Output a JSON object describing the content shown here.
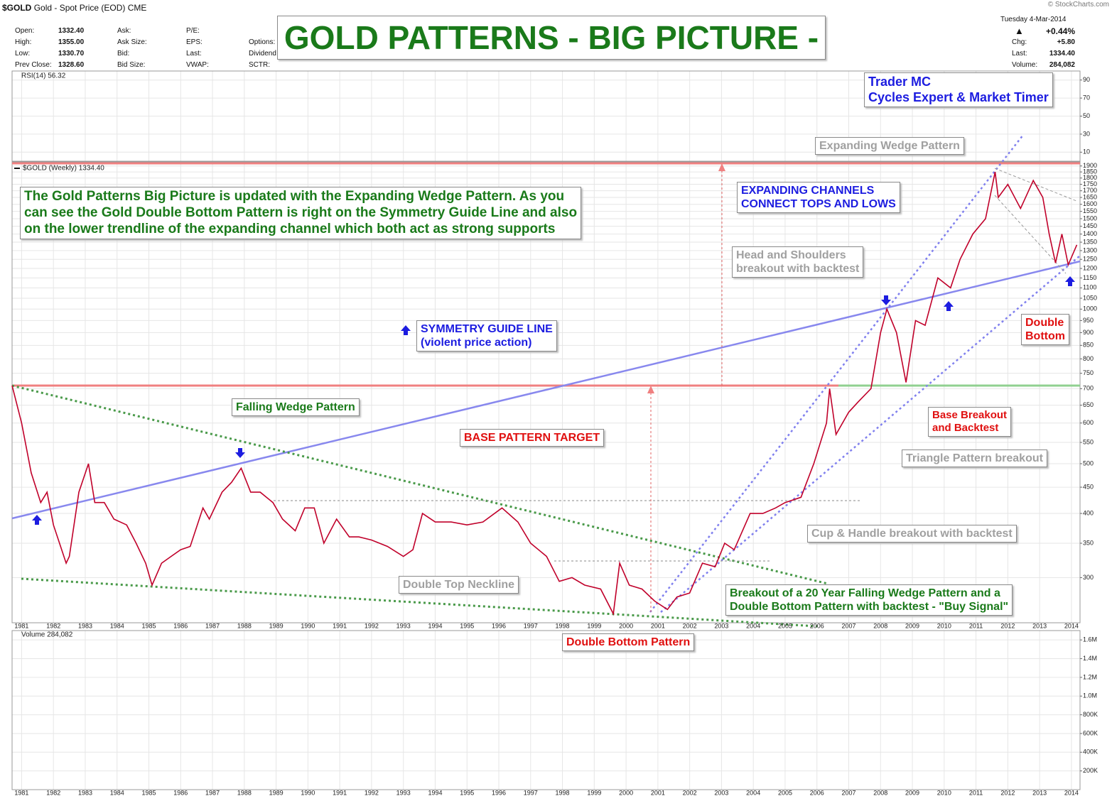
{
  "header": {
    "symbol": "$GOLD",
    "name": "Gold - Spot Price (EOD)",
    "exchange": "CME",
    "date": "Tuesday  4-Mar-2014",
    "change_pct": "+0.44%",
    "chg_label": "Chg:",
    "chg": "+5.80",
    "last_label": "Last:",
    "last": "1334.40",
    "volume_label": "Volume:",
    "volume": "284,082",
    "copyright": "© StockCharts.com",
    "title": "GOLD PATTERNS - BIG PICTURE -",
    "author": [
      "Trader MC",
      "Cycles Expert & Market Timer"
    ]
  },
  "quote": {
    "labels1": [
      "Open:",
      "High:",
      "Low:",
      "Prev Close:"
    ],
    "values1": [
      "1332.40",
      "1355.00",
      "1330.70",
      "1328.60"
    ],
    "labels2": [
      "Ask:",
      "Ask Size:",
      "Bid:",
      "Bid Size:"
    ],
    "labels3": [
      "P/E:",
      "EPS:",
      "Last:",
      "VWAP:"
    ],
    "labels4": [
      "Options:",
      "Dividend",
      "SCTR:"
    ]
  },
  "chart_data": [
    {
      "type": "line",
      "log_scale": true,
      "grid": true,
      "xlim": [
        1980.7,
        2014.27
      ],
      "ylim": [
        245,
        1935
      ],
      "xticks": [
        1981,
        1982,
        1983,
        1984,
        1985,
        1986,
        1987,
        1988,
        1989,
        1990,
        1991,
        1992,
        1993,
        1994,
        1995,
        1996,
        1997,
        1998,
        1999,
        2000,
        2001,
        2002,
        2003,
        2004,
        2005,
        2006,
        2007,
        2008,
        2009,
        2010,
        2011,
        2012,
        2013,
        2014
      ],
      "yticks": [
        300,
        350,
        400,
        450,
        500,
        550,
        600,
        650,
        700,
        750,
        800,
        850,
        900,
        950,
        1000,
        1050,
        1100,
        1150,
        1200,
        1250,
        1300,
        1350,
        1400,
        1450,
        1500,
        1550,
        1600,
        1650,
        1700,
        1750,
        1800,
        1850,
        1900
      ],
      "x": [
        1980.7,
        1981.0,
        1981.3,
        1981.6,
        1981.8,
        1982.0,
        1982.4,
        1982.5,
        1982.8,
        1983.1,
        1983.3,
        1983.6,
        1983.9,
        1984.3,
        1984.6,
        1984.9,
        1985.1,
        1985.4,
        1985.7,
        1986.0,
        1986.3,
        1986.7,
        1986.9,
        1987.3,
        1987.6,
        1987.9,
        1988.2,
        1988.5,
        1988.9,
        1989.2,
        1989.6,
        1989.9,
        1990.2,
        1990.5,
        1990.9,
        1991.3,
        1991.6,
        1992.0,
        1992.5,
        1993.0,
        1993.3,
        1993.6,
        1994.0,
        1994.5,
        1995.0,
        1995.5,
        1996.1,
        1996.6,
        1997.0,
        1997.5,
        1997.9,
        1998.3,
        1998.7,
        1999.2,
        1999.6,
        1999.8,
        2000.1,
        2000.5,
        2000.9,
        2001.3,
        2001.6,
        2002.0,
        2002.4,
        2002.8,
        2003.1,
        2003.4,
        2003.9,
        2004.3,
        2004.7,
        2005.0,
        2005.5,
        2005.9,
        2006.3,
        2006.4,
        2006.6,
        2007.0,
        2007.3,
        2007.7,
        2008.0,
        2008.2,
        2008.5,
        2008.8,
        2009.1,
        2009.4,
        2009.8,
        2010.2,
        2010.5,
        2010.9,
        2011.3,
        2011.6,
        2011.7,
        2012.0,
        2012.4,
        2012.8,
        2013.1,
        2013.3,
        2013.5,
        2013.7,
        2013.9,
        2014.17
      ],
      "series": [
        {
          "name": "$GOLD (Weekly) 1334.40",
          "color": "#c0002a",
          "values": [
            710,
            600,
            480,
            420,
            440,
            380,
            320,
            330,
            440,
            500,
            420,
            420,
            390,
            380,
            350,
            320,
            290,
            320,
            330,
            340,
            345,
            410,
            390,
            440,
            460,
            490,
            440,
            440,
            420,
            390,
            370,
            410,
            410,
            350,
            390,
            360,
            360,
            355,
            345,
            330,
            340,
            400,
            385,
            385,
            380,
            385,
            410,
            385,
            350,
            330,
            295,
            300,
            290,
            285,
            255,
            320,
            290,
            285,
            270,
            260,
            275,
            280,
            320,
            315,
            350,
            340,
            400,
            400,
            410,
            420,
            430,
            500,
            600,
            700,
            570,
            630,
            660,
            700,
            900,
            1000,
            900,
            720,
            950,
            930,
            1150,
            1100,
            1250,
            1400,
            1500,
            1850,
            1650,
            1750,
            1570,
            1780,
            1650,
            1400,
            1230,
            1400,
            1220,
            1334
          ]
        }
      ],
      "annotations": [
        [
          "Expanding Wedge Pattern"
        ],
        [
          "EXPANDING CHANNELS",
          "CONNECT TOPS AND LOWS"
        ],
        [
          "Head and Shoulders",
          "breakout with backtest"
        ],
        [
          "Double",
          "Bottom"
        ],
        [
          "SYMMETRY GUIDE LINE",
          "(violent price action)"
        ],
        [
          "Falling Wedge Pattern"
        ],
        [
          "BASE PATTERN TARGET"
        ],
        [
          "Base Breakout",
          "and Backtest"
        ],
        [
          "Triangle Pattern breakout"
        ],
        [
          "Cup & Handle breakout with backtest"
        ],
        [
          "Double Top Neckline"
        ],
        [
          "Breakout of a 20 Year Falling Wedge Pattern and a",
          "Double Bottom Pattern with backtest - \"Buy Signal\""
        ],
        [
          "Double Bottom Pattern"
        ],
        [
          "The Gold Patterns Big Picture is updated with the Expanding Wedge Pattern. As you",
          "can see the Gold Double Bottom Pattern is right on the Symmetry Guide Line and also",
          "on the lower trendline of the expanding channel which both act as strong supports"
        ]
      ]
    },
    {
      "type": "line",
      "title": "RSI(14) 56.32",
      "ylim": [
        0,
        100
      ],
      "yticks": [
        10,
        30,
        50,
        70,
        90
      ],
      "grid": true
    },
    {
      "type": "bar",
      "title": "Volume 284,082",
      "ylim": [
        0,
        1700000
      ],
      "grid": true,
      "yticks": [
        {
          "value": 200000,
          "label": "200K"
        },
        {
          "value": 400000,
          "label": "400K"
        },
        {
          "value": 600000,
          "label": "600K"
        },
        {
          "value": 800000,
          "label": "800K"
        },
        {
          "value": 1000000,
          "label": "1.0M"
        },
        {
          "value": 1200000,
          "label": "1.2M"
        },
        {
          "value": 1400000,
          "label": "1.4M"
        },
        {
          "value": 1600000,
          "label": "1.6M"
        }
      ]
    }
  ]
}
